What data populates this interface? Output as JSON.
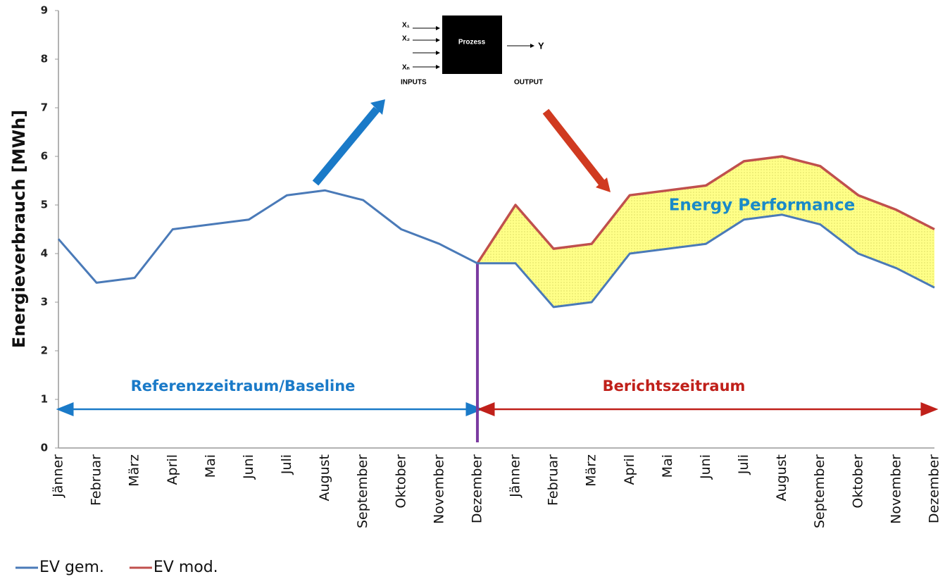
{
  "chart_data": {
    "type": "line",
    "y_label": "Energieverbrauch [MWh]",
    "categories": [
      "Jänner",
      "Februar",
      "März",
      "April",
      "Mai",
      "Juni",
      "Juli",
      "August",
      "September",
      "Oktober",
      "November",
      "Dezember",
      "Jänner",
      "Februar",
      "März",
      "April",
      "Mai",
      "Juni",
      "Juli",
      "August",
      "September",
      "Oktober",
      "November",
      "Dezember"
    ],
    "series": [
      {
        "name": "EV gem.",
        "color": "#4a7ab8",
        "values": [
          4.3,
          3.4,
          3.5,
          4.5,
          4.6,
          4.7,
          5.2,
          5.3,
          5.1,
          4.5,
          4.2,
          3.8,
          3.8,
          2.9,
          3.0,
          4.0,
          4.1,
          4.2,
          4.7,
          4.8,
          4.6,
          4.0,
          3.7,
          3.3
        ]
      },
      {
        "name": "EV mod.",
        "color": "#c0504d",
        "values": [
          null,
          null,
          null,
          null,
          null,
          null,
          null,
          null,
          null,
          null,
          null,
          3.8,
          5.0,
          4.1,
          4.2,
          5.2,
          5.3,
          5.4,
          5.9,
          6.0,
          5.8,
          5.2,
          4.9,
          4.5
        ]
      }
    ],
    "ylim": [
      0,
      9
    ],
    "yticks": [
      0,
      1,
      2,
      3,
      4,
      5,
      6,
      7,
      8,
      9
    ],
    "grid": false,
    "legend": "bottom-left",
    "annotations": {
      "performance": "Energy Performance",
      "baseline": "Referenzzeitraum/Baseline",
      "report": "Berichtszeitraum",
      "diagram": {
        "x1": "X₁",
        "x2": "X₂",
        "xn": "Xₙ",
        "process": "Prozess",
        "y": "Y",
        "inputs": "INPUTS",
        "output": "OUTPUT"
      }
    }
  }
}
